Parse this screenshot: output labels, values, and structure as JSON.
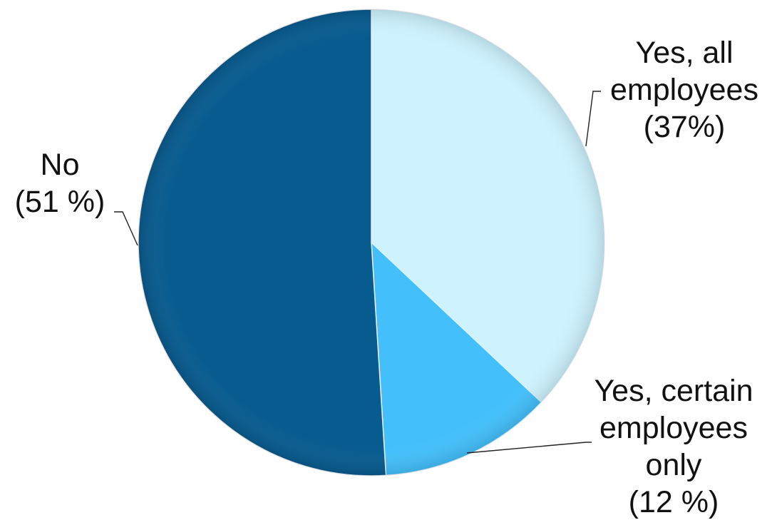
{
  "chart_data": {
    "type": "pie",
    "title": "",
    "start_angle_deg": 0,
    "direction": "clockwise",
    "slices": [
      {
        "name": "Yes, all employees",
        "value": 37,
        "label_lines": [
          "Yes, all",
          "employees",
          "(37%)"
        ],
        "color": "#cdf3ff"
      },
      {
        "name": "Yes, certain employees only",
        "value": 12,
        "label_lines": [
          "Yes, certain",
          "employees",
          "only",
          "(12 %)"
        ],
        "color": "#43c0fb"
      },
      {
        "name": "No",
        "value": 51,
        "label_lines": [
          "No",
          "(51 %)"
        ],
        "color": "#075b8f"
      }
    ],
    "legend": "none"
  }
}
